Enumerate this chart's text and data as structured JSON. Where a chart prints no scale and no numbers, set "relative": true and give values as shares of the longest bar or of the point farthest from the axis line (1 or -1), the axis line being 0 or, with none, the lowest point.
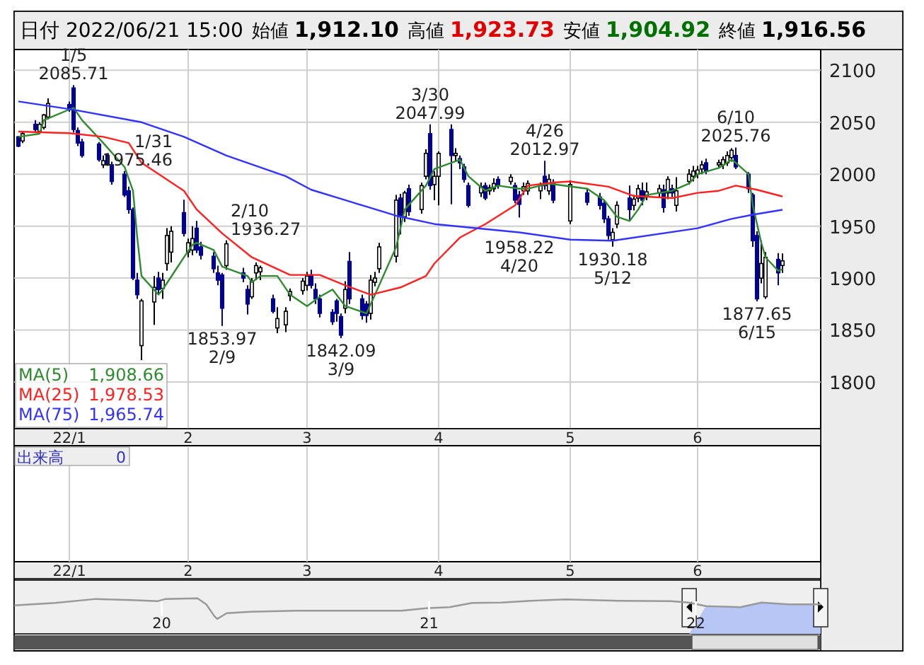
{
  "chart_data": [
    {
      "type": "candlestick",
      "title": "日付 2022/06/21 15:00",
      "x": [
        "2021-12-23",
        "2021-12-24",
        "2021-12-27",
        "2021-12-28",
        "2021-12-29",
        "2021-12-30",
        "2022-01-04",
        "2022-01-05",
        "2022-01-06",
        "2022-01-07",
        "2022-01-11",
        "2022-01-12",
        "2022-01-13",
        "2022-01-14",
        "2022-01-17",
        "2022-01-18",
        "2022-01-19",
        "2022-01-20",
        "2022-01-21",
        "2022-01-24",
        "2022-01-25",
        "2022-01-26",
        "2022-01-27",
        "2022-01-28",
        "2022-01-31",
        "2022-02-01",
        "2022-02-02",
        "2022-02-03",
        "2022-02-04",
        "2022-02-07",
        "2022-02-08",
        "2022-02-09",
        "2022-02-10",
        "2022-02-14",
        "2022-02-15",
        "2022-02-16",
        "2022-02-17",
        "2022-02-18",
        "2022-02-21",
        "2022-02-22",
        "2022-02-24",
        "2022-02-25",
        "2022-02-28",
        "2022-03-01",
        "2022-03-02",
        "2022-03-03",
        "2022-03-04",
        "2022-03-07",
        "2022-03-08",
        "2022-03-09",
        "2022-03-10",
        "2022-03-11",
        "2022-03-14",
        "2022-03-15",
        "2022-03-16",
        "2022-03-17",
        "2022-03-18",
        "2022-03-22",
        "2022-03-23",
        "2022-03-24",
        "2022-03-25",
        "2022-03-28",
        "2022-03-29",
        "2022-03-30",
        "2022-03-31",
        "2022-04-01",
        "2022-04-04",
        "2022-04-05",
        "2022-04-06",
        "2022-04-07",
        "2022-04-08",
        "2022-04-11",
        "2022-04-12",
        "2022-04-13",
        "2022-04-14",
        "2022-04-15",
        "2022-04-18",
        "2022-04-19",
        "2022-04-20",
        "2022-04-21",
        "2022-04-22",
        "2022-04-25",
        "2022-04-26",
        "2022-04-27",
        "2022-04-28",
        "2022-05-02",
        "2022-05-06",
        "2022-05-09",
        "2022-05-10",
        "2022-05-11",
        "2022-05-12",
        "2022-05-13",
        "2022-05-16",
        "2022-05-17",
        "2022-05-18",
        "2022-05-19",
        "2022-05-20",
        "2022-05-23",
        "2022-05-24",
        "2022-05-25",
        "2022-05-26",
        "2022-05-27",
        "2022-05-30",
        "2022-05-31",
        "2022-06-01",
        "2022-06-02",
        "2022-06-03",
        "2022-06-06",
        "2022-06-07",
        "2022-06-08",
        "2022-06-09",
        "2022-06-10",
        "2022-06-13",
        "2022-06-14",
        "2022-06-15",
        "2022-06-16",
        "2022-06-17",
        "2022-06-20",
        "2022-06-21"
      ],
      "ohlc": [
        [
          2036,
          2037,
          2026,
          2027
        ],
        [
          2032,
          2041,
          2030,
          2039
        ],
        [
          2048,
          2052,
          2041,
          2043
        ],
        [
          2041,
          2050,
          2039,
          2048
        ],
        [
          2045,
          2058,
          2043,
          2057
        ],
        [
          2055,
          2073,
          2053,
          2068
        ],
        [
          2067,
          2070,
          2060,
          2062
        ],
        [
          2083,
          2085.71,
          2040,
          2043
        ],
        [
          2042,
          2045,
          2027,
          2030
        ],
        [
          2031,
          2034,
          2016,
          2018
        ],
        [
          2029,
          2031,
          2012,
          2014
        ],
        [
          2009,
          2018,
          2006,
          2013
        ],
        [
          2018,
          2020,
          2008,
          2009
        ],
        [
          2009,
          2012,
          1990,
          1993
        ],
        [
          2000,
          2003,
          1978,
          1980
        ],
        [
          1984,
          1988,
          1962,
          1966
        ],
        [
          1966,
          1968,
          1898,
          1900
        ],
        [
          1898,
          1905,
          1880,
          1884
        ],
        [
          1835,
          1880,
          1821,
          1878
        ],
        [
          1877,
          1902,
          1855,
          1891
        ],
        [
          1900,
          1906,
          1884,
          1889
        ],
        [
          1890,
          1905,
          1880,
          1898
        ],
        [
          1914,
          1948,
          1907,
          1941
        ],
        [
          1925,
          1950,
          1915,
          1945
        ],
        [
          1963,
          1975.46,
          1940,
          1943
        ],
        [
          1925,
          1938,
          1920,
          1934
        ],
        [
          1927,
          1950,
          1922,
          1938
        ],
        [
          1948,
          1955,
          1924,
          1927
        ],
        [
          1930,
          1935,
          1918,
          1922
        ],
        [
          1921,
          1925,
          1905,
          1909
        ],
        [
          1905,
          1912,
          1893,
          1898
        ],
        [
          1903,
          1905,
          1853.97,
          1871
        ],
        [
          1912,
          1936.27,
          1908,
          1933
        ],
        [
          1905,
          1910,
          1896,
          1900
        ],
        [
          1889,
          1893,
          1865,
          1875
        ],
        [
          1882,
          1900,
          1880,
          1897
        ],
        [
          1905,
          1915,
          1898,
          1912
        ],
        [
          1906,
          1912,
          1898,
          1910
        ],
        [
          1880,
          1884,
          1866,
          1868
        ],
        [
          1852,
          1872,
          1847,
          1861
        ],
        [
          1855,
          1872,
          1848,
          1868
        ],
        [
          1883,
          1890,
          1878,
          1887
        ],
        [
          1888,
          1900,
          1884,
          1897
        ],
        [
          1893,
          1906,
          1888,
          1902
        ],
        [
          1903,
          1908,
          1890,
          1893
        ],
        [
          1889,
          1895,
          1875,
          1880
        ],
        [
          1880,
          1884,
          1862,
          1866
        ],
        [
          1867,
          1870,
          1855,
          1858
        ],
        [
          1878,
          1880,
          1858,
          1866
        ],
        [
          1863,
          1866,
          1842.09,
          1845
        ],
        [
          1871,
          1897,
          1866,
          1889
        ],
        [
          1916,
          1925,
          1875,
          1880
        ],
        [
          1880,
          1884,
          1860,
          1864
        ],
        [
          1875,
          1878,
          1857,
          1864
        ],
        [
          1866,
          1903,
          1860,
          1898
        ],
        [
          1896,
          1906,
          1892,
          1900
        ],
        [
          1909,
          1934,
          1905,
          1930
        ],
        [
          1921,
          1980,
          1915,
          1975
        ],
        [
          1977,
          1981,
          1942,
          1959
        ],
        [
          1959,
          1984,
          1954,
          1982
        ],
        [
          1986,
          1990,
          1960,
          1964
        ],
        [
          1966,
          1992,
          1962,
          1989
        ],
        [
          1998,
          2024,
          1995,
          2020
        ],
        [
          2039,
          2047.99,
          1985,
          1989
        ],
        [
          1990,
          2003,
          1975,
          1998
        ],
        [
          1998,
          2022,
          1970,
          2020
        ],
        [
          2043,
          2048,
          1971,
          2018
        ],
        [
          2018,
          2025,
          2012,
          2020
        ],
        [
          2015,
          2018,
          2005,
          2011
        ],
        [
          2007,
          2010,
          1992,
          1995
        ],
        [
          1989,
          1992,
          1968,
          1970
        ],
        [
          1982,
          1992,
          1978,
          1988
        ],
        [
          1989,
          1992,
          1975,
          1977
        ],
        [
          1984,
          1990,
          1980,
          1987
        ],
        [
          1986,
          1996,
          1983,
          1991
        ],
        [
          1995,
          1998,
          1986,
          1989
        ],
        [
          1993,
          2000,
          1990,
          1997
        ],
        [
          1989,
          1992,
          1972,
          1975
        ],
        [
          1980,
          1984,
          1958.22,
          1971
        ],
        [
          1984,
          1992,
          1980,
          1988
        ],
        [
          1984,
          1994,
          1980,
          1991
        ],
        [
          1984,
          1992,
          1976,
          1989
        ],
        [
          1998,
          2012.97,
          1985,
          1989
        ],
        [
          1984,
          2000,
          1980,
          1995
        ],
        [
          1991,
          1995,
          1972,
          1975
        ],
        [
          1955,
          1994,
          1952,
          1990
        ],
        [
          1982,
          1986,
          1970,
          1973
        ],
        [
          1978,
          1982,
          1966,
          1970
        ],
        [
          1972,
          1975,
          1953,
          1957
        ],
        [
          1957,
          1960,
          1937,
          1941
        ],
        [
          1937,
          1948,
          1930.18,
          1944
        ],
        [
          1952,
          1974,
          1948,
          1970
        ],
        [
          1977,
          1989,
          1955,
          1966
        ],
        [
          1970,
          1980,
          1965,
          1976
        ],
        [
          1977,
          1990,
          1973,
          1986
        ],
        [
          1984,
          1992,
          1970,
          1975
        ],
        [
          1979,
          1992,
          1975,
          1983
        ],
        [
          1982,
          1990,
          1978,
          1986
        ],
        [
          1985,
          1990,
          1963,
          1968
        ],
        [
          1982,
          1998,
          1976,
          1995
        ],
        [
          1986,
          1990,
          1978,
          1982
        ],
        [
          1970,
          1997,
          1964,
          1984
        ],
        [
          1993,
          2005,
          1990,
          2000
        ],
        [
          1998,
          2008,
          1993,
          2003
        ],
        [
          2000,
          2008,
          1996,
          2004
        ],
        [
          2005,
          2013,
          2000,
          2009
        ],
        [
          2011,
          2015,
          2000,
          2003
        ],
        [
          2009,
          2014,
          2006,
          2011
        ],
        [
          2009,
          2017,
          2005,
          2014
        ],
        [
          2011,
          2022,
          2008,
          2018
        ],
        [
          2016,
          2025,
          2012,
          2023
        ],
        [
          2018,
          2025.76,
          2005,
          2007
        ],
        [
          2000,
          2002,
          1982,
          1986
        ],
        [
          1980,
          1982,
          1930,
          1936
        ],
        [
          1941,
          1945,
          1877.65,
          1880
        ],
        [
          1900,
          1936,
          1895,
          1914
        ],
        [
          1882,
          1925,
          1880,
          1920
        ],
        [
          1918,
          1924,
          1893,
          1905
        ],
        [
          1912.1,
          1923.73,
          1904.92,
          1916.56
        ]
      ],
      "series": [
        {
          "name": "MA(5)",
          "type": "line",
          "color": "#2e8b2e",
          "x": [
            "2021-12-23",
            "2021-12-28",
            "2021-12-29",
            "2022-01-05",
            "2022-01-07",
            "2022-01-12",
            "2022-01-17",
            "2022-01-19",
            "2022-01-20",
            "2022-01-21",
            "2022-01-25",
            "2022-01-26",
            "2022-01-31",
            "2022-02-02",
            "2022-02-03",
            "2022-02-07",
            "2022-02-09",
            "2022-02-15",
            "2022-02-16",
            "2022-02-18",
            "2022-02-22",
            "2022-02-25",
            "2022-03-01",
            "2022-03-04",
            "2022-03-07",
            "2022-03-10",
            "2022-03-15",
            "2022-03-17",
            "2022-03-22",
            "2022-03-24",
            "2022-03-29",
            "2022-03-31",
            "2022-04-04",
            "2022-04-06",
            "2022-04-08",
            "2022-04-12",
            "2022-04-15",
            "2022-04-20",
            "2022-04-22",
            "2022-04-27",
            "2022-05-06",
            "2022-05-10",
            "2022-05-13",
            "2022-05-16",
            "2022-05-18",
            "2022-05-20",
            "2022-05-26",
            "2022-05-30",
            "2022-06-01",
            "2022-06-06",
            "2022-06-09",
            "2022-06-10",
            "2022-06-13",
            "2022-06-14",
            "2022-06-16",
            "2022-06-17",
            "2022-06-20",
            "2022-06-21"
          ],
          "values": [
            2036,
            2039,
            2052,
            2064,
            2052,
            2030,
            2007,
            1984,
            1939,
            1902,
            1884,
            1889,
            1920,
            1932,
            1934,
            1927,
            1911,
            1902,
            1896,
            1902,
            1902,
            1884,
            1873,
            1882,
            1889,
            1873,
            1866,
            1884,
            1930,
            1966,
            1989,
            2005,
            2011,
            2014,
            1998,
            1984,
            1989,
            1986,
            1986,
            1991,
            1986,
            1975,
            1959,
            1955,
            1966,
            1980,
            1984,
            1991,
            2000,
            2006,
            2014,
            2011,
            2000,
            1970,
            1934,
            1920,
            1907,
            1908.66
          ]
        },
        {
          "name": "MA(25)",
          "type": "line",
          "color": "#ff2020",
          "x": [
            "2021-12-23",
            "2022-01-04",
            "2022-01-12",
            "2022-01-18",
            "2022-01-21",
            "2022-01-31",
            "2022-02-03",
            "2022-02-09",
            "2022-02-16",
            "2022-02-25",
            "2022-03-04",
            "2022-03-10",
            "2022-03-16",
            "2022-03-23",
            "2022-03-29",
            "2022-03-31",
            "2022-04-06",
            "2022-04-12",
            "2022-04-19",
            "2022-04-22",
            "2022-04-28",
            "2022-05-02",
            "2022-05-11",
            "2022-05-17",
            "2022-05-26",
            "2022-06-01",
            "2022-06-06",
            "2022-06-10",
            "2022-06-15",
            "2022-06-21"
          ],
          "values": [
            2041,
            2039.5,
            2036,
            2030,
            2011,
            1984,
            1966,
            1943,
            1920,
            1903,
            1903,
            1893,
            1884,
            1891,
            1902,
            1914,
            1939,
            1952,
            1970,
            1989,
            1992,
            1993,
            1988,
            1979,
            1977,
            1982,
            1984,
            1989,
            1985,
            1978.53
          ]
        },
        {
          "name": "MA(75)",
          "type": "line",
          "color": "#3333ff",
          "x": [
            "2021-12-23",
            "2022-01-05",
            "2022-01-21",
            "2022-01-31",
            "2022-02-10",
            "2022-02-24",
            "2022-03-02",
            "2022-03-10",
            "2022-03-22",
            "2022-03-31",
            "2022-04-20",
            "2022-05-02",
            "2022-05-12",
            "2022-06-01",
            "2022-06-09",
            "2022-06-14",
            "2022-06-21"
          ],
          "values": [
            2070,
            2062,
            2050,
            2036,
            2018,
            1998,
            1985,
            1975,
            1960,
            1952,
            1944,
            1937,
            1936,
            1948,
            1957,
            1961,
            1965.74
          ]
        }
      ],
      "xlim": [
        "2021-12-22",
        "2022-06-30"
      ],
      "xticks": [
        {
          "value": "2022-01-04",
          "label": "22/1"
        },
        {
          "value": "2022-02-01",
          "label": "2"
        },
        {
          "value": "2022-03-01",
          "label": "3"
        },
        {
          "value": "2022-04-01",
          "label": "4"
        },
        {
          "value": "2022-05-02",
          "label": "5"
        },
        {
          "value": "2022-06-01",
          "label": "6"
        }
      ],
      "ylim": [
        1755,
        2120
      ],
      "yticks": [
        1800,
        1850,
        1900,
        1950,
        2000,
        2050,
        2100
      ],
      "grid": true,
      "legend": "bottom left",
      "annotations": [
        "始値 1,912.10",
        "高値 1,923.73",
        "安値 1,904.92",
        "終値 1,916.56",
        "出来高",
        "0",
        "1,908.66",
        "1,978.53",
        "1,965.74",
        {
          "text": "1/5\n2085.71",
          "x": "2022-01-05",
          "y": 2085.71
        },
        {
          "text": "1/31\n1975.46",
          "x": "2022-01-31",
          "y": 1975.46
        },
        {
          "text": "2/10\n1936.27",
          "x": "2022-02-10",
          "y": 1936.27
        },
        {
          "text": "1853.97\n2/9",
          "x": "2022-02-09",
          "y": 1853.97
        },
        {
          "text": "1842.09\n3/9",
          "x": "2022-03-09",
          "y": 1842.09
        },
        {
          "text": "3/30\n2047.99",
          "x": "2022-03-30",
          "y": 2047.99
        },
        {
          "text": "4/26\n2012.97",
          "x": "2022-04-26",
          "y": 2012.97
        },
        {
          "text": "1958.22\n4/20",
          "x": "2022-04-20",
          "y": 1958.22
        },
        {
          "text": "1930.18\n5/12",
          "x": "2022-05-12",
          "y": 1930.18
        },
        {
          "text": "6/10\n2025.76",
          "x": "2022-06-10",
          "y": 2025.76
        },
        {
          "text": "1877.65\n6/15",
          "x": "2022-06-15",
          "y": 1877.65
        }
      ]
    },
    {
      "type": "line",
      "relative": true,
      "color": "#999999",
      "x": [
        "2019-06-13",
        "2019-08-08",
        "2019-10-03",
        "2019-11-21",
        "2019-12-27",
        "2020-01-06",
        "2020-02-19",
        "2020-03-02",
        "2020-03-13",
        "2020-03-17",
        "2020-03-30",
        "2020-05-01",
        "2020-07-03",
        "2020-09-22",
        "2020-11-24",
        "2020-12-28",
        "2021-01-29",
        "2021-03-01",
        "2021-04-10",
        "2021-05-20",
        "2021-07-07",
        "2021-09-17",
        "2021-11-28",
        "2021-12-22",
        "2022-01-15",
        "2022-03-03",
        "2022-04-01",
        "2022-05-08",
        "2022-06-21"
      ],
      "values": [
        0.8,
        0.87,
        0.98,
        0.95,
        0.92,
        0.98,
        1,
        0.83,
        0.5,
        0.42,
        0.58,
        0.62,
        0.65,
        0.65,
        0.65,
        0.72,
        0.75,
        0.87,
        0.88,
        0.93,
        0.97,
        0.93,
        0.92,
        0.88,
        0.78,
        0.75,
        0.88,
        0.83,
        0.83
      ],
      "xlim": [
        "2019-06-13",
        "2022-06-21"
      ],
      "xticks": [
        {
          "value": "2020-01-01",
          "label": "20"
        },
        {
          "value": "2021-01-01",
          "label": "21"
        },
        {
          "value": "2022-01-01",
          "label": "22"
        }
      ],
      "bands": [
        {
          "axis": "x",
          "from": "2021-12-23",
          "to": "2022-06-21",
          "color": "#b8c6f5"
        }
      ],
      "tick_labels": "x"
    }
  ]
}
